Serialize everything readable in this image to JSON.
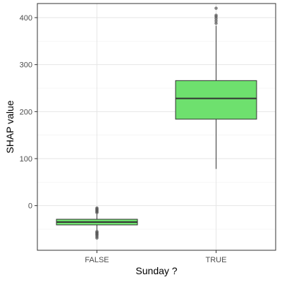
{
  "chart_data": {
    "type": "box",
    "xlabel": "Sunday ?",
    "ylabel": "SHAP value",
    "ylim": [
      -95,
      430
    ],
    "yticks": [
      0,
      100,
      200,
      300,
      400
    ],
    "grid": true,
    "box_fill": "#6ee06e",
    "outlier_color": "#555555",
    "categories": [
      "FALSE",
      "TRUE"
    ],
    "boxes": [
      {
        "category": "FALSE",
        "whisker_low": -52,
        "q1": -41,
        "median": -35,
        "q3": -29,
        "whisker_high": -18,
        "outliers": [
          -5,
          -7,
          -9,
          -11,
          -13,
          -15,
          -55,
          -57,
          -59,
          -61,
          -63,
          -66,
          -69
        ]
      },
      {
        "category": "TRUE",
        "whisker_low": 78,
        "q1": 184,
        "median": 228,
        "q3": 266,
        "whisker_high": 383,
        "outliers": [
          388,
          393,
          398,
          402,
          405,
          420
        ]
      }
    ]
  }
}
